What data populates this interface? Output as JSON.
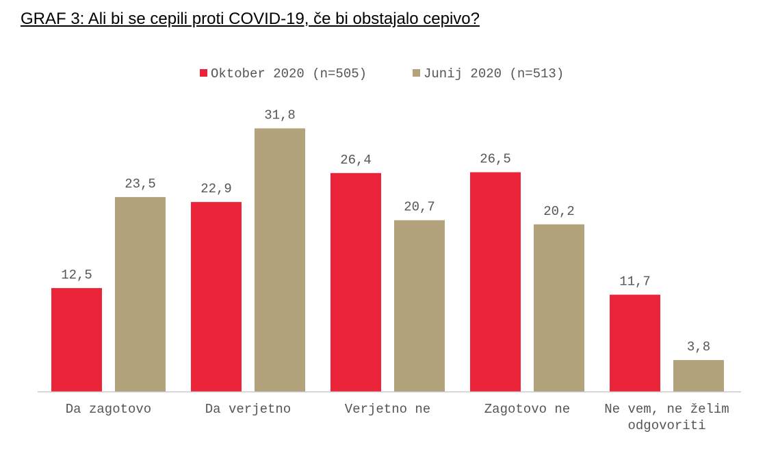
{
  "title": "GRAF 3: Ali bi se cepili proti COVID-19, če bi obstajalo cepivo?",
  "colors": {
    "oktober": "#ec2439",
    "junij": "#b2a37d",
    "axis": "#c8c8c8",
    "text": "#555555"
  },
  "chart_data": {
    "type": "bar",
    "title": "GRAF 3: Ali bi se cepili proti COVID-19, če bi obstajalo cepivo?",
    "xlabel": "",
    "ylabel": "",
    "ylim": [
      0,
      35
    ],
    "grid": false,
    "legend_position": "top",
    "categories": [
      [
        "Da zagotovo"
      ],
      [
        "Da verjetno"
      ],
      [
        "Verjetno ne"
      ],
      [
        "Zagotovo ne"
      ],
      [
        "Ne vem, ne želim",
        "odgovoriti"
      ]
    ],
    "series": [
      {
        "name": "Oktober 2020 (n=505)",
        "color": "#ec2439",
        "values": [
          12.5,
          22.9,
          26.4,
          26.5,
          11.7
        ],
        "labels": [
          "12,5",
          "22,9",
          "26,4",
          "26,5",
          "11,7"
        ]
      },
      {
        "name": "Junij 2020 (n=513)",
        "color": "#b2a37d",
        "values": [
          23.5,
          31.8,
          20.7,
          20.2,
          3.8
        ],
        "labels": [
          "23,5",
          "31,8",
          "20,7",
          "20,2",
          "3,8"
        ]
      }
    ]
  }
}
